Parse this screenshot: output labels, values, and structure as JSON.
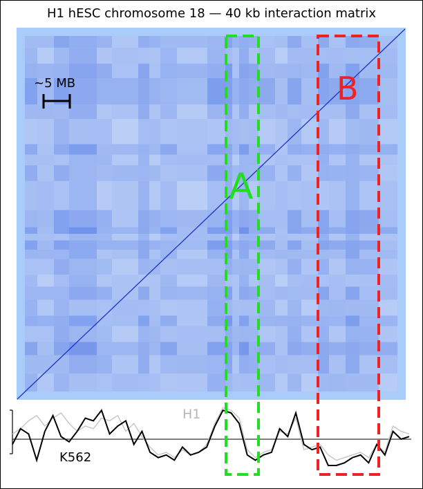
{
  "figure": {
    "title": "H1 hESC chromosome 18 — 40 kb interaction matrix",
    "scale_bar_label": "~5 MB",
    "region_a_label": "A",
    "region_b_label": "B",
    "track_h1_label": "H1",
    "track_k562_label": "K562"
  },
  "colors": {
    "matrix_background": "#a9ccfb",
    "matrix_light": "#d6e6fb",
    "matrix_dark": "#2d5be0",
    "diagonal": "#1a30c8",
    "region_a": "#22dd22",
    "region_b": "#ee2222",
    "h1_track": "#c8c8c8",
    "k562_track": "#000000"
  },
  "tracks": {
    "h1": [
      0.2,
      0.4,
      0.7,
      0.9,
      0.5,
      0.8,
      1.0,
      0.6,
      0.3,
      0.5,
      0.4,
      0.8,
      0.7,
      0.9,
      0.3,
      0.6,
      0.1,
      -0.3,
      -0.6,
      -0.5,
      -0.7,
      -0.4,
      -0.6,
      -0.5,
      -0.2,
      0.6,
      1.2,
      1.1,
      0.8,
      -0.4,
      -0.7,
      -0.5,
      -0.4,
      0.3,
      0.2,
      0.8,
      -0.4,
      -0.3,
      -0.2,
      -0.6,
      -0.8,
      -0.7,
      -0.6,
      -0.5,
      -0.7,
      -0.2,
      -0.5,
      0.5,
      0.3,
      0.2
    ],
    "k562": [
      -0.2,
      0.4,
      0.2,
      -0.8,
      0.3,
      0.9,
      0.1,
      -0.1,
      0.3,
      0.8,
      0.7,
      1.1,
      0.2,
      0.5,
      0.7,
      -0.2,
      0.3,
      -0.5,
      -0.7,
      -0.6,
      -0.8,
      -0.3,
      -0.6,
      -0.5,
      -0.3,
      0.5,
      1.1,
      1.0,
      0.6,
      -0.6,
      -0.8,
      -0.6,
      -0.5,
      0.4,
      0.1,
      1.0,
      -0.2,
      -0.4,
      -0.3,
      -1.0,
      -1.0,
      -0.9,
      -0.7,
      -0.6,
      -0.9,
      -0.2,
      -0.6,
      0.3,
      0.0,
      0.1
    ]
  }
}
